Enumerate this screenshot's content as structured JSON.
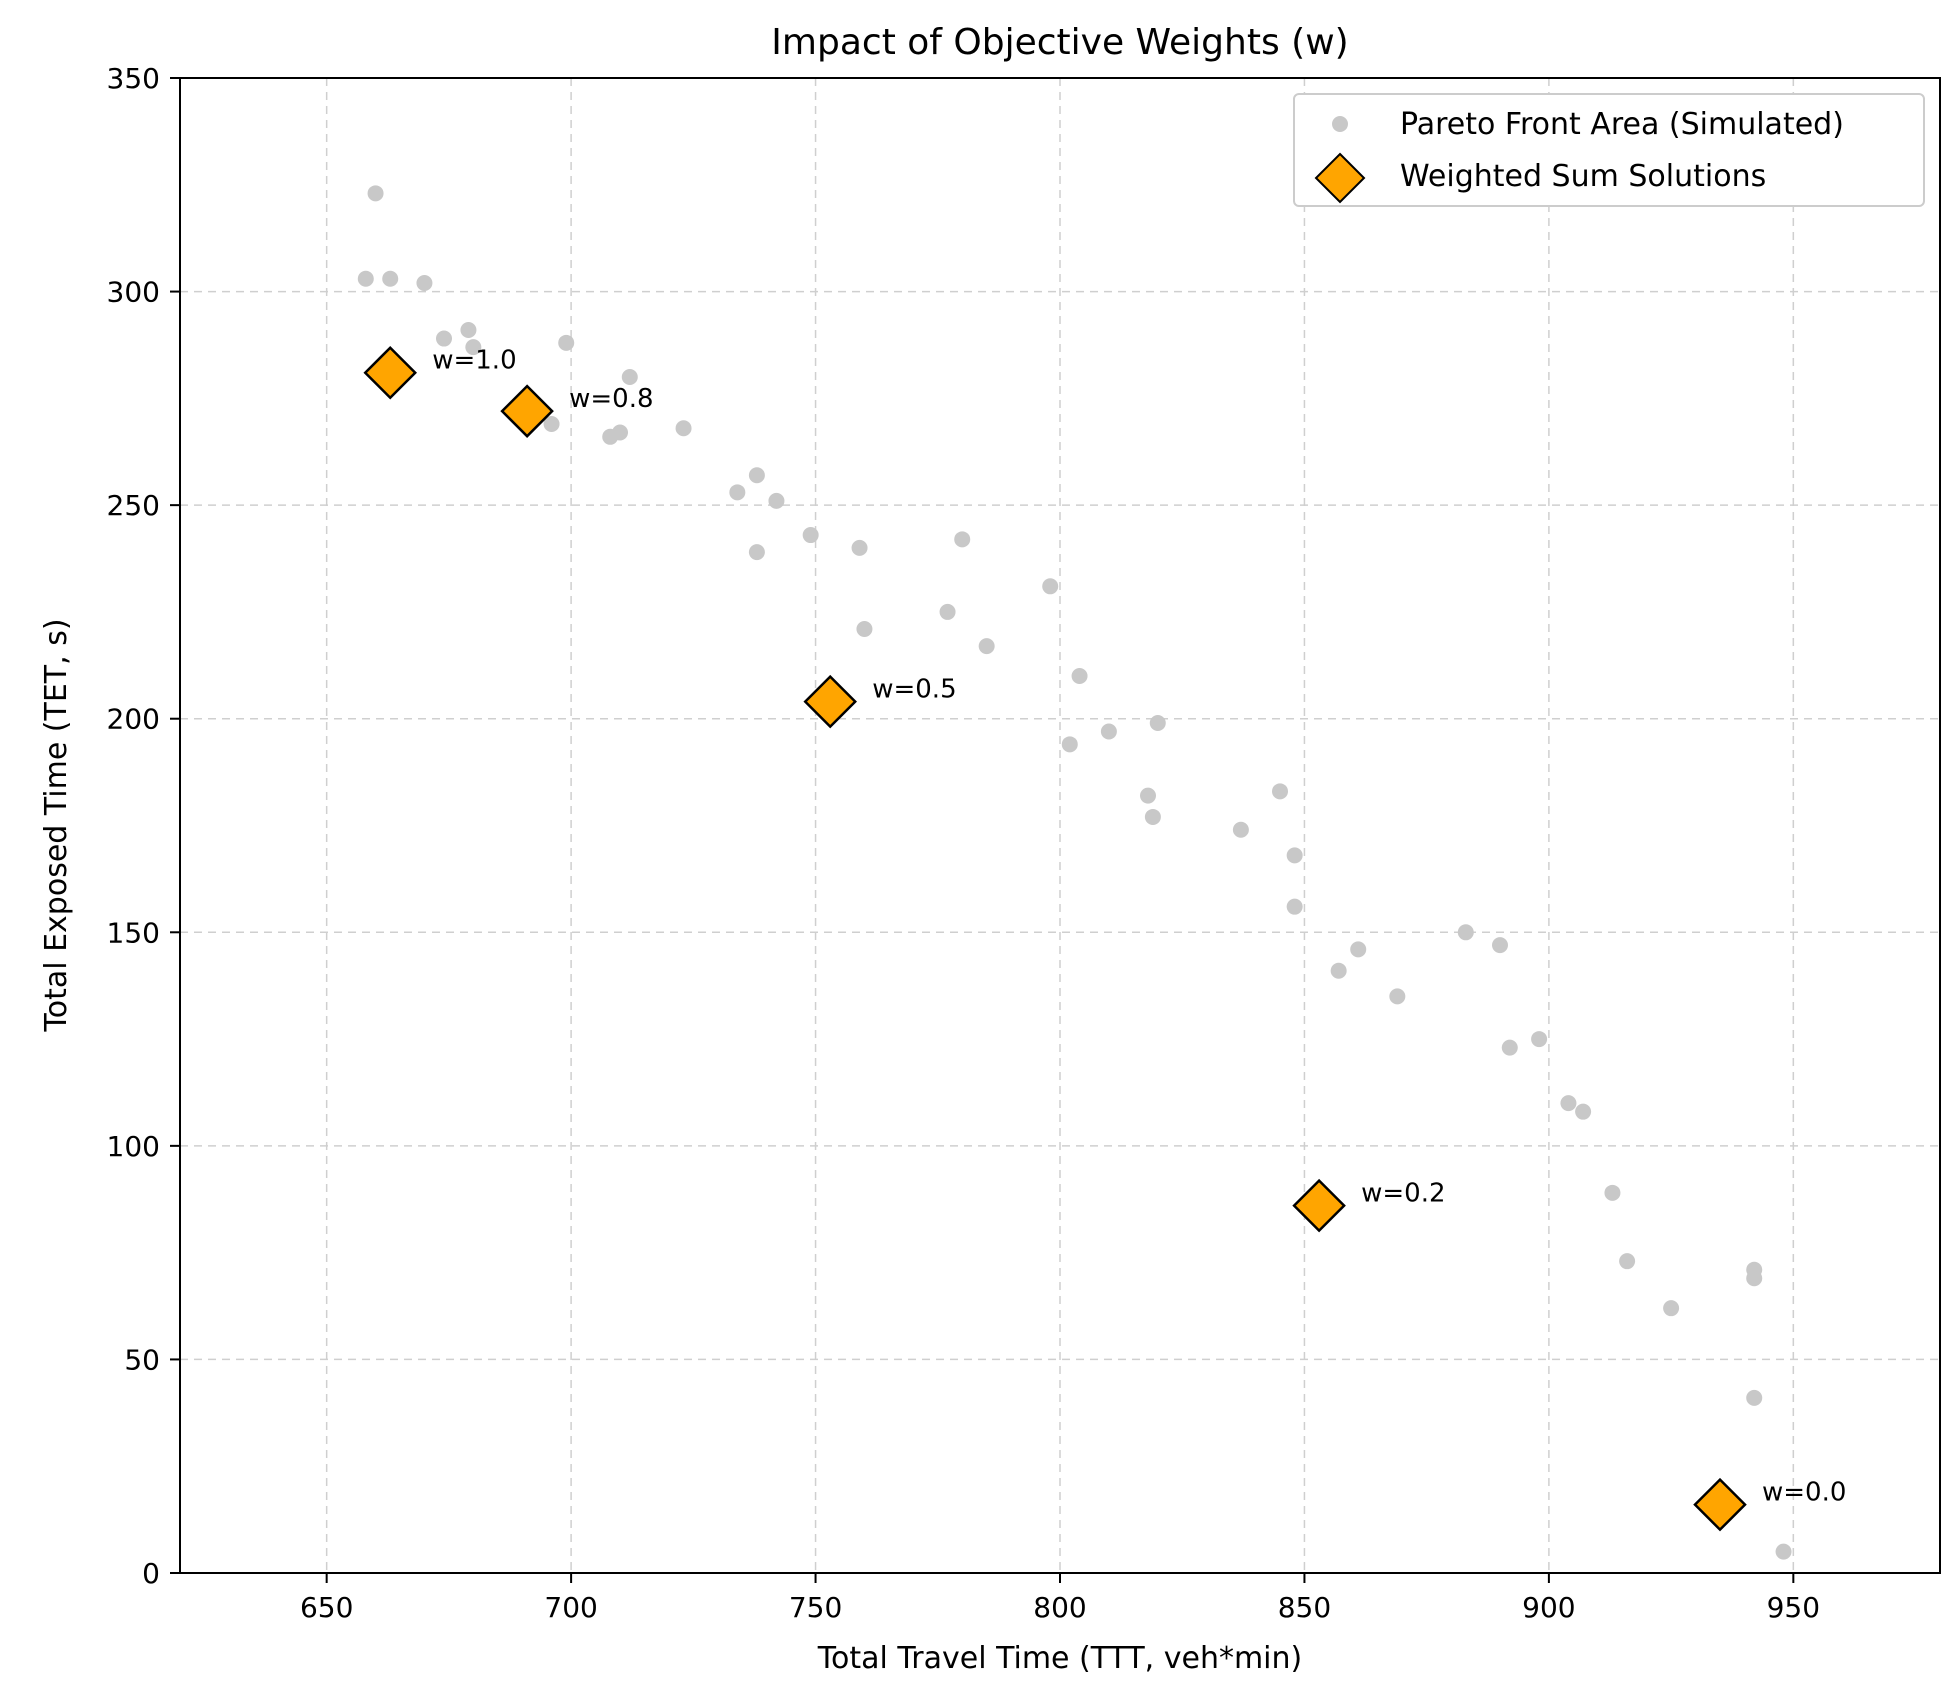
{
  "chart_data": {
    "type": "scatter",
    "title": "Impact of Objective Weights (w)",
    "xlabel": "Total Travel Time (TTT, veh*min)",
    "ylabel": "Total Exposed Time (TET, s)",
    "xlim": [
      620,
      980
    ],
    "ylim": [
      0,
      350
    ],
    "xticks": [
      650,
      700,
      750,
      800,
      850,
      900,
      950
    ],
    "yticks": [
      0,
      50,
      100,
      150,
      200,
      250,
      300,
      350
    ],
    "grid": true,
    "legend_position": "top-right",
    "colors": {
      "pareto": "#c8c8c8",
      "weighted": "#ffa500",
      "weighted_edge": "#000000",
      "grid": "#cfcfcf"
    },
    "series": [
      {
        "name": "Pareto Front Area (Simulated)",
        "marker": "circle",
        "points": [
          [
            660,
            323
          ],
          [
            658,
            303
          ],
          [
            663,
            303
          ],
          [
            670,
            302
          ],
          [
            674,
            289
          ],
          [
            679,
            291
          ],
          [
            680,
            287
          ],
          [
            699,
            288
          ],
          [
            712,
            280
          ],
          [
            696,
            269
          ],
          [
            708,
            266
          ],
          [
            710,
            267
          ],
          [
            723,
            268
          ],
          [
            734,
            253
          ],
          [
            738,
            257
          ],
          [
            742,
            251
          ],
          [
            738,
            239
          ],
          [
            749,
            243
          ],
          [
            759,
            240
          ],
          [
            760,
            221
          ],
          [
            777,
            225
          ],
          [
            780,
            242
          ],
          [
            785,
            217
          ],
          [
            798,
            231
          ],
          [
            804,
            210
          ],
          [
            802,
            194
          ],
          [
            810,
            197
          ],
          [
            820,
            199
          ],
          [
            818,
            182
          ],
          [
            819,
            177
          ],
          [
            837,
            174
          ],
          [
            845,
            183
          ],
          [
            848,
            168
          ],
          [
            848,
            156
          ],
          [
            857,
            141
          ],
          [
            861,
            146
          ],
          [
            869,
            135
          ],
          [
            883,
            150
          ],
          [
            890,
            147
          ],
          [
            892,
            123
          ],
          [
            898,
            125
          ],
          [
            904,
            110
          ],
          [
            907,
            108
          ],
          [
            913,
            89
          ],
          [
            916,
            73
          ],
          [
            925,
            62
          ],
          [
            942,
            71
          ],
          [
            942,
            69
          ],
          [
            942,
            41
          ],
          [
            948,
            5
          ]
        ]
      },
      {
        "name": "Weighted Sum Solutions",
        "marker": "diamond",
        "points": [
          {
            "x": 663,
            "y": 281,
            "label": "w=1.0"
          },
          {
            "x": 691,
            "y": 272,
            "label": "w=0.8"
          },
          {
            "x": 753,
            "y": 204,
            "label": "w=0.5"
          },
          {
            "x": 853,
            "y": 86,
            "label": "w=0.2"
          },
          {
            "x": 935,
            "y": 16,
            "label": "w=0.0"
          }
        ]
      }
    ]
  }
}
